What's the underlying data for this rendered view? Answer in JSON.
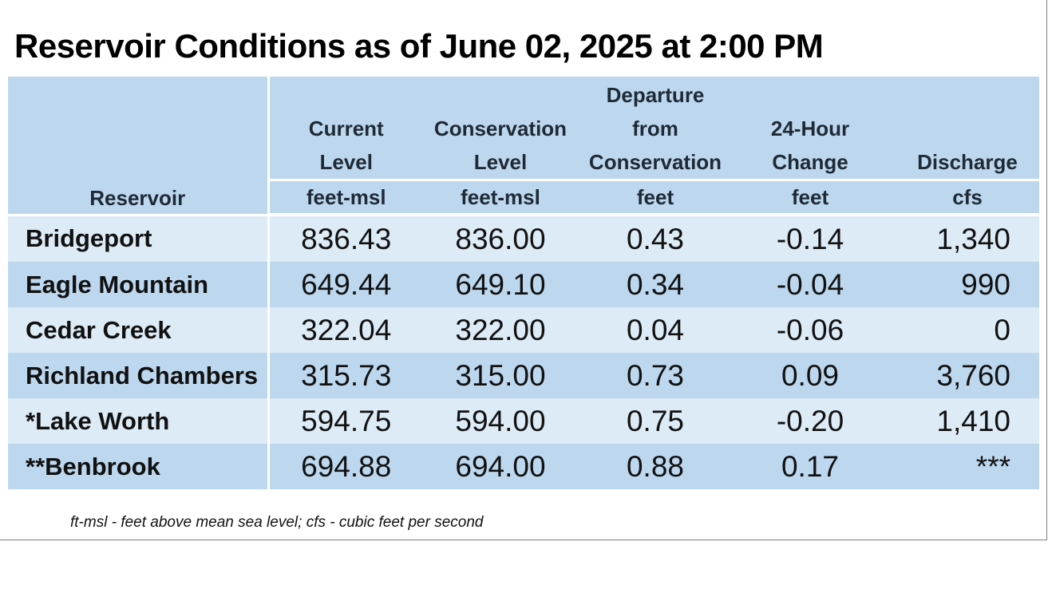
{
  "title": "Reservoir Conditions as of June 02, 2025 at 2:00 PM",
  "table": {
    "headers": [
      {
        "label": "Reservoir",
        "unit": ""
      },
      {
        "label": "Current Level",
        "unit": "feet-msl"
      },
      {
        "label": "Conservation Level",
        "unit": "feet-msl"
      },
      {
        "label": "Departure from Conservation",
        "unit": "feet"
      },
      {
        "label": "24-Hour Change",
        "unit": "feet"
      },
      {
        "label": "Discharge",
        "unit": "cfs"
      }
    ],
    "rows": [
      {
        "reservoir": "Bridgeport",
        "current": "836.43",
        "conservation": "836.00",
        "departure": "0.43",
        "change": "-0.14",
        "discharge": "1,340"
      },
      {
        "reservoir": "Eagle Mountain",
        "current": "649.44",
        "conservation": "649.10",
        "departure": "0.34",
        "change": "-0.04",
        "discharge": "990"
      },
      {
        "reservoir": "Cedar Creek",
        "current": "322.04",
        "conservation": "322.00",
        "departure": "0.04",
        "change": "-0.06",
        "discharge": "0"
      },
      {
        "reservoir": "Richland Chambers",
        "current": "315.73",
        "conservation": "315.00",
        "departure": "0.73",
        "change": "0.09",
        "discharge": "3,760"
      },
      {
        "reservoir": "*Lake Worth",
        "current": "594.75",
        "conservation": "594.00",
        "departure": "0.75",
        "change": "-0.20",
        "discharge": "1,410"
      },
      {
        "reservoir": "**Benbrook",
        "current": "694.88",
        "conservation": "694.00",
        "departure": "0.88",
        "change": "0.17",
        "discharge": "***"
      }
    ]
  },
  "footnote": "ft-msl - feet above mean sea level; cfs - cubic feet per second",
  "colors": {
    "header_bg": "#bdd7ee",
    "row_light": "#ddebf7",
    "row_dark": "#bdd7ee"
  }
}
